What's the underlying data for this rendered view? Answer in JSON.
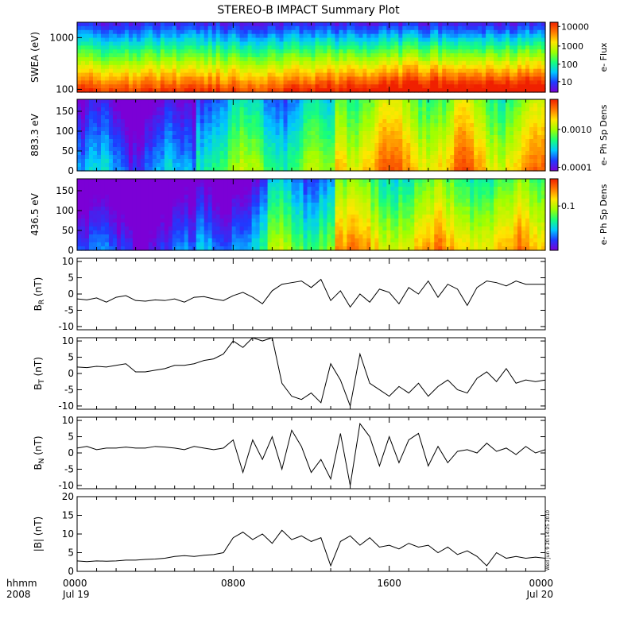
{
  "title": "STEREO-B IMPACT Summary Plot",
  "timestamp_vertical": "Wed Jun  9 20:14:25 2010",
  "time_axis": {
    "corner_label_1": "hhmm",
    "corner_label_2": "2008",
    "ticks": [
      {
        "time": "0000",
        "date": "Jul 19"
      },
      {
        "time": "0800",
        "date": ""
      },
      {
        "time": "1600",
        "date": ""
      },
      {
        "time": "0000",
        "date": "Jul 20"
      }
    ]
  },
  "chart_data": [
    {
      "type": "heatmap",
      "ylabel": "SWEA (eV)",
      "yscale": "log",
      "yticks": [
        "1000",
        "100"
      ],
      "colorbar_label": "e- Flux",
      "colorbar_scale": "log",
      "colorbar_ticks": [
        "10000",
        "1000",
        "100",
        "10"
      ],
      "colormap": [
        "#7b00d6",
        "#1f3bff",
        "#00c8ff",
        "#18ff7a",
        "#9dff00",
        "#ffe600",
        "#ff7a00",
        "#f02000"
      ]
    },
    {
      "type": "heatmap",
      "ylabel": "883.3 eV",
      "ylim": [
        0,
        180
      ],
      "yticks": [
        "150",
        "100",
        "50",
        "0"
      ],
      "colorbar_label": "e- Ph Sp Dens",
      "colorbar_ticks": [
        "0.0010",
        "0.0001"
      ]
    },
    {
      "type": "heatmap",
      "ylabel": "436.5 eV",
      "ylim": [
        0,
        180
      ],
      "yticks": [
        "150",
        "100",
        "50",
        "0"
      ],
      "colorbar_label": "e- Ph Sp Dens",
      "colorbar_ticks": [
        "0.1"
      ]
    },
    {
      "type": "line",
      "ylabel": "B_R (nT)",
      "ylabel_main": "B",
      "ylabel_sub": "R",
      "ylabel_unit": " (nT)",
      "ylim": [
        -11,
        11
      ],
      "yticks": [
        "10",
        "5",
        "0",
        "-5",
        "-10"
      ],
      "x": [
        0,
        0.5,
        1,
        1.5,
        2,
        2.5,
        3,
        3.5,
        4,
        4.5,
        5,
        5.5,
        6,
        6.5,
        7,
        7.5,
        8,
        8.5,
        9,
        9.5,
        10,
        10.5,
        11,
        11.5,
        12,
        12.5,
        13,
        13.5,
        14,
        14.5,
        15,
        15.5,
        16,
        16.5,
        17,
        17.5,
        18,
        18.5,
        19,
        19.5,
        20,
        20.5,
        21,
        21.5,
        22,
        22.5,
        23,
        23.5,
        24
      ],
      "values": [
        -1.5,
        -1.8,
        -1.2,
        -2.5,
        -1.0,
        -0.5,
        -2.0,
        -2.2,
        -1.8,
        -2.0,
        -1.5,
        -2.5,
        -1.0,
        -0.8,
        -1.5,
        -2.0,
        -0.5,
        0.5,
        -1.0,
        -3.0,
        1.0,
        3.0,
        3.5,
        4.0,
        2.0,
        4.5,
        -2.0,
        1.0,
        -4.0,
        0.0,
        -2.5,
        1.5,
        0.5,
        -3.0,
        2.0,
        0.0,
        4.0,
        -1.0,
        3.0,
        1.5,
        -3.5,
        2.0,
        4.0,
        3.5,
        2.5,
        4.0,
        3.0,
        3.0,
        3.0
      ]
    },
    {
      "type": "line",
      "ylabel": "B_T (nT)",
      "ylabel_main": "B",
      "ylabel_sub": "T",
      "ylabel_unit": " (nT)",
      "ylim": [
        -11,
        11
      ],
      "yticks": [
        "10",
        "5",
        "0",
        "-5",
        "-10"
      ],
      "x": [
        0,
        0.5,
        1,
        1.5,
        2,
        2.5,
        3,
        3.5,
        4,
        4.5,
        5,
        5.5,
        6,
        6.5,
        7,
        7.5,
        8,
        8.5,
        9,
        9.5,
        10,
        10.5,
        11,
        11.5,
        12,
        12.5,
        13,
        13.5,
        14,
        14.5,
        15,
        15.5,
        16,
        16.5,
        17,
        17.5,
        18,
        18.5,
        19,
        19.5,
        20,
        20.5,
        21,
        21.5,
        22,
        22.5,
        23,
        23.5,
        24
      ],
      "values": [
        2.0,
        1.8,
        2.2,
        2.0,
        2.5,
        3.0,
        0.5,
        0.5,
        1.0,
        1.5,
        2.5,
        2.5,
        3.0,
        4.0,
        4.5,
        6.0,
        10.0,
        8.0,
        11.0,
        10.0,
        11.0,
        -3.0,
        -7.0,
        -8.0,
        -6.0,
        -9.0,
        3.0,
        -2.0,
        -10.0,
        6.0,
        -3.0,
        -5.0,
        -7.0,
        -4.0,
        -6.0,
        -3.0,
        -7.0,
        -4.0,
        -2.0,
        -5.0,
        -6.0,
        -1.5,
        0.5,
        -2.5,
        1.5,
        -3.0,
        -2.0,
        -2.5,
        -2.0
      ]
    },
    {
      "type": "line",
      "ylabel": "B_N (nT)",
      "ylabel_main": "B",
      "ylabel_sub": "N",
      "ylabel_unit": " (nT)",
      "ylim": [
        -11,
        11
      ],
      "yticks": [
        "10",
        "5",
        "0",
        "-5",
        "-10"
      ],
      "x": [
        0,
        0.5,
        1,
        1.5,
        2,
        2.5,
        3,
        3.5,
        4,
        4.5,
        5,
        5.5,
        6,
        6.5,
        7,
        7.5,
        8,
        8.5,
        9,
        9.5,
        10,
        10.5,
        11,
        11.5,
        12,
        12.5,
        13,
        13.5,
        14,
        14.5,
        15,
        15.5,
        16,
        16.5,
        17,
        17.5,
        18,
        18.5,
        19,
        19.5,
        20,
        20.5,
        21,
        21.5,
        22,
        22.5,
        23,
        23.5,
        24
      ],
      "values": [
        1.5,
        2.0,
        1.0,
        1.5,
        1.5,
        1.8,
        1.5,
        1.5,
        2.0,
        1.8,
        1.5,
        1.0,
        2.0,
        1.5,
        1.0,
        1.5,
        4.0,
        -6.0,
        4.0,
        -2.0,
        5.0,
        -5.0,
        7.0,
        2.0,
        -6.0,
        -2.0,
        -8.0,
        6.0,
        -10.0,
        9.0,
        5.0,
        -4.0,
        5.0,
        -3.0,
        4.0,
        6.0,
        -4.0,
        2.0,
        -3.0,
        0.5,
        1.0,
        0.0,
        3.0,
        0.5,
        1.5,
        -0.5,
        2.0,
        0.0,
        1.0
      ]
    },
    {
      "type": "line",
      "ylabel": "|B| (nT)",
      "ylabel_main": "|B|",
      "ylabel_sub": "",
      "ylabel_unit": " (nT)",
      "ylim": [
        0,
        20
      ],
      "yticks": [
        "20",
        "15",
        "10",
        "5",
        "0"
      ],
      "x": [
        0,
        0.5,
        1,
        1.5,
        2,
        2.5,
        3,
        3.5,
        4,
        4.5,
        5,
        5.5,
        6,
        6.5,
        7,
        7.5,
        8,
        8.5,
        9,
        9.5,
        10,
        10.5,
        11,
        11.5,
        12,
        12.5,
        13,
        13.5,
        14,
        14.5,
        15,
        15.5,
        16,
        16.5,
        17,
        17.5,
        18,
        18.5,
        19,
        19.5,
        20,
        20.5,
        21,
        21.5,
        22,
        22.5,
        23,
        23.5,
        24
      ],
      "values": [
        2.8,
        2.6,
        2.8,
        2.7,
        2.8,
        3.0,
        3.0,
        3.2,
        3.3,
        3.5,
        4.0,
        4.2,
        4.0,
        4.3,
        4.5,
        5.0,
        9.0,
        10.5,
        8.5,
        10.0,
        7.5,
        11.0,
        8.5,
        9.5,
        8.0,
        9.0,
        1.5,
        8.0,
        9.5,
        7.0,
        9.0,
        6.5,
        7.0,
        6.0,
        7.5,
        6.5,
        7.0,
        5.0,
        6.5,
        4.5,
        5.5,
        4.0,
        1.5,
        5.0,
        3.5,
        4.0,
        3.5,
        3.8,
        3.5
      ]
    }
  ]
}
